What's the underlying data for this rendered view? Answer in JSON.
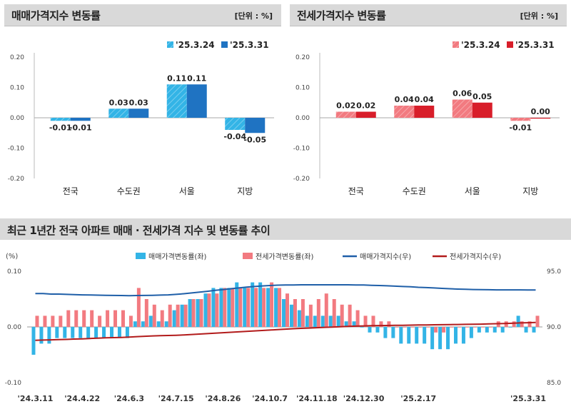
{
  "colors": {
    "sale_prev": "#33b4e6",
    "sale_curr": "#1f73c2",
    "jeonse_prev": "#f27a80",
    "jeonse_curr": "#d81e2a",
    "sale_index_line": "#1f5fa8",
    "jeonse_index_line": "#b21b1b"
  },
  "chart_data": [
    {
      "type": "bar",
      "title": "매매가격지수 변동률",
      "unit": "[단위 : %]",
      "categories": [
        "전국",
        "수도권",
        "서울",
        "지방"
      ],
      "series": [
        {
          "name": "'25.3.24",
          "values": [
            -0.01,
            0.03,
            0.11,
            -0.04
          ],
          "labels": [
            "-0.01",
            "0.03",
            "0.11",
            "-0.04"
          ]
        },
        {
          "name": "'25.3.31",
          "values": [
            -0.01,
            0.03,
            0.11,
            -0.05
          ],
          "labels": [
            "-0.01",
            "0.03",
            "0.11",
            "-0.05"
          ]
        }
      ],
      "ylim": [
        -0.2,
        0.2
      ],
      "yticks": [
        "0.20",
        "0.10",
        "0.00",
        "-0.10",
        "-0.20"
      ],
      "legend": "top-right"
    },
    {
      "type": "bar",
      "title": "전세가격지수 변동률",
      "unit": "[단위 : %]",
      "categories": [
        "전국",
        "수도권",
        "서울",
        "지방"
      ],
      "series": [
        {
          "name": "'25.3.24",
          "values": [
            0.02,
            0.04,
            0.06,
            -0.01
          ],
          "labels": [
            "0.02",
            "0.04",
            "0.06",
            "-0.01"
          ]
        },
        {
          "name": "'25.3.31",
          "values": [
            0.02,
            0.04,
            0.05,
            0.0
          ],
          "labels": [
            "0.02",
            "0.04",
            "0.05",
            "0.00"
          ]
        }
      ],
      "ylim": [
        -0.2,
        0.2
      ],
      "yticks": [
        "0.20",
        "0.10",
        "0.00",
        "-0.10",
        "-0.20"
      ],
      "legend": "top-right"
    },
    {
      "type": "bar",
      "title": "최근 1년간 전국 아파트 매매 · 전세가격 지수 및 변동률 추이",
      "ylabel": "(%)",
      "ylim": [
        -0.1,
        0.1
      ],
      "yticks": [
        "0.10",
        "0.00",
        "-0.10"
      ],
      "y2lim": [
        85.0,
        95.0
      ],
      "y2ticks": [
        "95.0",
        "90.0",
        "85.0"
      ],
      "xticks": [
        "'24.3.11",
        "'24.4.22",
        "'24.6.3",
        "'24.7.15",
        "'24.8.26",
        "'24.10.7",
        "'24.11.18",
        "'24.12.30",
        "'25.2.17",
        "'25.3.31"
      ],
      "series": [
        {
          "name": "매매가격변동률(좌)",
          "type": "bar",
          "values": [
            -0.05,
            -0.03,
            -0.03,
            -0.02,
            -0.02,
            -0.02,
            -0.02,
            -0.02,
            -0.02,
            -0.02,
            -0.02,
            -0.02,
            -0.02,
            0.01,
            0.01,
            0.02,
            0.01,
            0.01,
            0.03,
            0.04,
            0.05,
            0.05,
            0.06,
            0.07,
            0.07,
            0.07,
            0.08,
            0.07,
            0.08,
            0.08,
            0.07,
            0.07,
            0.05,
            0.04,
            0.03,
            0.02,
            0.02,
            0.02,
            0.02,
            0.02,
            0.01,
            0.01,
            0.0,
            -0.01,
            -0.01,
            -0.02,
            -0.02,
            -0.03,
            -0.03,
            -0.03,
            -0.03,
            -0.04,
            -0.04,
            -0.04,
            -0.03,
            -0.03,
            -0.02,
            -0.01,
            -0.01,
            -0.01,
            -0.01,
            0.0,
            0.02,
            -0.01,
            -0.01
          ]
        },
        {
          "name": "전세가격변동률(좌)",
          "type": "bar",
          "values": [
            0.02,
            0.02,
            0.02,
            0.02,
            0.03,
            0.03,
            0.03,
            0.03,
            0.02,
            0.03,
            0.03,
            0.03,
            0.02,
            0.07,
            0.05,
            0.04,
            0.03,
            0.04,
            0.04,
            0.04,
            0.05,
            0.05,
            0.06,
            0.06,
            0.07,
            0.07,
            0.07,
            0.07,
            0.07,
            0.07,
            0.08,
            0.07,
            0.06,
            0.05,
            0.05,
            0.04,
            0.05,
            0.06,
            0.05,
            0.04,
            0.04,
            0.03,
            0.02,
            0.02,
            0.01,
            0.01,
            0.0,
            0.0,
            0.0,
            0.0,
            0.0,
            -0.01,
            -0.01,
            0.0,
            0.0,
            0.0,
            0.0,
            0.0,
            0.0,
            0.01,
            0.01,
            0.01,
            0.01,
            0.01,
            0.02
          ]
        },
        {
          "name": "매매가격지수(우)",
          "type": "line",
          "values": [
            93.0,
            93.0,
            92.95,
            92.95,
            92.92,
            92.9,
            92.88,
            92.87,
            92.85,
            92.84,
            92.83,
            92.82,
            92.81,
            92.82,
            92.83,
            92.84,
            92.86,
            92.88,
            92.92,
            92.98,
            93.05,
            93.12,
            93.2,
            93.28,
            93.35,
            93.43,
            93.5,
            93.57,
            93.63,
            93.68,
            93.72,
            93.75,
            93.76,
            93.77,
            93.78,
            93.78,
            93.78,
            93.78,
            93.78,
            93.78,
            93.78,
            93.77,
            93.76,
            93.74,
            93.72,
            93.69,
            93.66,
            93.63,
            93.6,
            93.56,
            93.53,
            93.5,
            93.46,
            93.43,
            93.4,
            93.38,
            93.36,
            93.35,
            93.34,
            93.33,
            93.33,
            93.33,
            93.33,
            93.32,
            93.32
          ]
        },
        {
          "name": "전세가격지수(우)",
          "type": "line",
          "values": [
            88.8,
            88.82,
            88.84,
            88.86,
            88.88,
            88.91,
            88.93,
            88.96,
            88.99,
            89.02,
            89.04,
            89.06,
            89.09,
            89.13,
            89.16,
            89.19,
            89.21,
            89.23,
            89.25,
            89.28,
            89.32,
            89.36,
            89.4,
            89.44,
            89.48,
            89.52,
            89.56,
            89.6,
            89.64,
            89.68,
            89.72,
            89.76,
            89.8,
            89.84,
            89.87,
            89.9,
            89.93,
            89.96,
            89.99,
            90.02,
            90.05,
            90.07,
            90.09,
            90.11,
            90.12,
            90.13,
            90.14,
            90.15,
            90.16,
            90.17,
            90.18,
            90.19,
            90.2,
            90.21,
            90.22,
            90.23,
            90.24,
            90.25,
            90.27,
            90.29,
            90.31,
            90.33,
            90.36,
            90.38,
            90.4
          ]
        }
      ],
      "legend": "top"
    }
  ]
}
